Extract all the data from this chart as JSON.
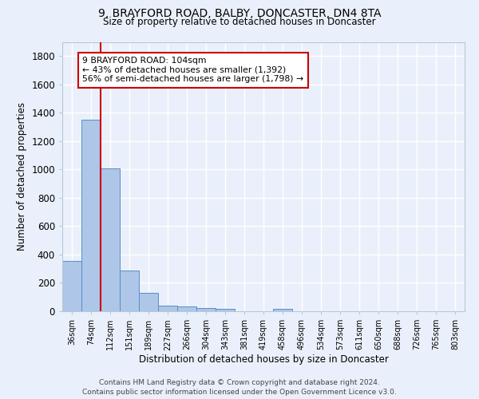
{
  "title": "9, BRAYFORD ROAD, BALBY, DONCASTER, DN4 8TA",
  "subtitle": "Size of property relative to detached houses in Doncaster",
  "xlabel": "Distribution of detached houses by size in Doncaster",
  "ylabel": "Number of detached properties",
  "bar_labels": [
    "36sqm",
    "74sqm",
    "112sqm",
    "151sqm",
    "189sqm",
    "227sqm",
    "266sqm",
    "304sqm",
    "343sqm",
    "381sqm",
    "419sqm",
    "458sqm",
    "496sqm",
    "534sqm",
    "573sqm",
    "611sqm",
    "650sqm",
    "688sqm",
    "726sqm",
    "765sqm",
    "803sqm"
  ],
  "bar_values": [
    355,
    1350,
    1010,
    285,
    130,
    40,
    35,
    20,
    15,
    0,
    0,
    15,
    0,
    0,
    0,
    0,
    0,
    0,
    0,
    0,
    0
  ],
  "bar_color": "#aec6e8",
  "bar_edge_color": "#5b8cc8",
  "annotation_text": "9 BRAYFORD ROAD: 104sqm\n← 43% of detached houses are smaller (1,392)\n56% of semi-detached houses are larger (1,798) →",
  "annotation_box_color": "#ffffff",
  "annotation_box_edge": "#cc0000",
  "background_color": "#eaf0fb",
  "grid_color": "#ffffff",
  "footer": "Contains HM Land Registry data © Crown copyright and database right 2024.\nContains public sector information licensed under the Open Government Licence v3.0.",
  "ylim": [
    0,
    1900
  ],
  "yticks": [
    0,
    200,
    400,
    600,
    800,
    1000,
    1200,
    1400,
    1600,
    1800
  ]
}
